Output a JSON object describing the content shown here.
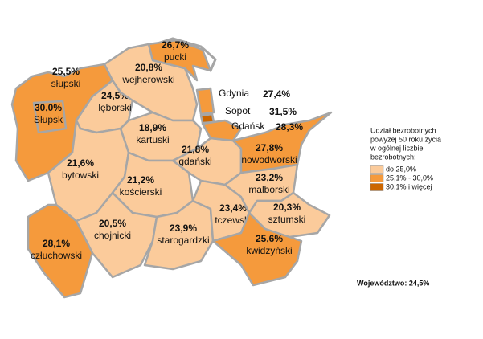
{
  "map": {
    "regions": [
      {
        "name": "słupski",
        "value": "25,5%",
        "color": "#f59a3c"
      },
      {
        "name": "Słupsk",
        "value": "30,0%",
        "color": "#f59a3c"
      },
      {
        "name": "lęborski",
        "value": "24,5%",
        "color": "#fbcb9b"
      },
      {
        "name": "wejherowski",
        "value": "20,8%",
        "color": "#fbcb9b"
      },
      {
        "name": "pucki",
        "value": "26,7%",
        "color": "#f59a3c"
      },
      {
        "name": "kartuski",
        "value": "18,9%",
        "color": "#fbcb9b"
      },
      {
        "name": "gdański",
        "value": "21,8%",
        "color": "#fbcb9b"
      },
      {
        "name": "nowodworski",
        "value": "27,8%",
        "color": "#f59a3c"
      },
      {
        "name": "bytowski",
        "value": "21,6%",
        "color": "#fbcb9b"
      },
      {
        "name": "kościerski",
        "value": "21,2%",
        "color": "#fbcb9b"
      },
      {
        "name": "chojnicki",
        "value": "20,5%",
        "color": "#fbcb9b"
      },
      {
        "name": "człuchowski",
        "value": "28,1%",
        "color": "#f59a3c"
      },
      {
        "name": "starogardzki",
        "value": "23,9%",
        "color": "#fbcb9b"
      },
      {
        "name": "tczewski",
        "value": "23,4%",
        "color": "#fbcb9b"
      },
      {
        "name": "malborski",
        "value": "23,2%",
        "color": "#fbcb9b"
      },
      {
        "name": "sztumski",
        "value": "20,3%",
        "color": "#fbcb9b"
      },
      {
        "name": "kwidzyński",
        "value": "25,6%",
        "color": "#f59a3c"
      }
    ],
    "cities": [
      {
        "name": "Gdynia",
        "value": "27,4%",
        "color": "#f59a3c"
      },
      {
        "name": "Sopot",
        "value": "31,5%",
        "color": "#cc6600"
      },
      {
        "name": "Gdańsk",
        "value": "28,3%",
        "color": "#f59a3c"
      }
    ],
    "legend": {
      "title": [
        "Udział bezrobotnych",
        "powyżej 50 roku życia",
        "w ogólnej liczbie",
        "bezrobotnych:"
      ],
      "items": [
        {
          "label": "do 25,0%",
          "color": "#fbcb9b"
        },
        {
          "label": "25,1% - 30,0%",
          "color": "#f59a3c"
        },
        {
          "label": "30,1% i więcej",
          "color": "#cc6600"
        }
      ]
    },
    "note": "Województwo: 24,5%"
  }
}
